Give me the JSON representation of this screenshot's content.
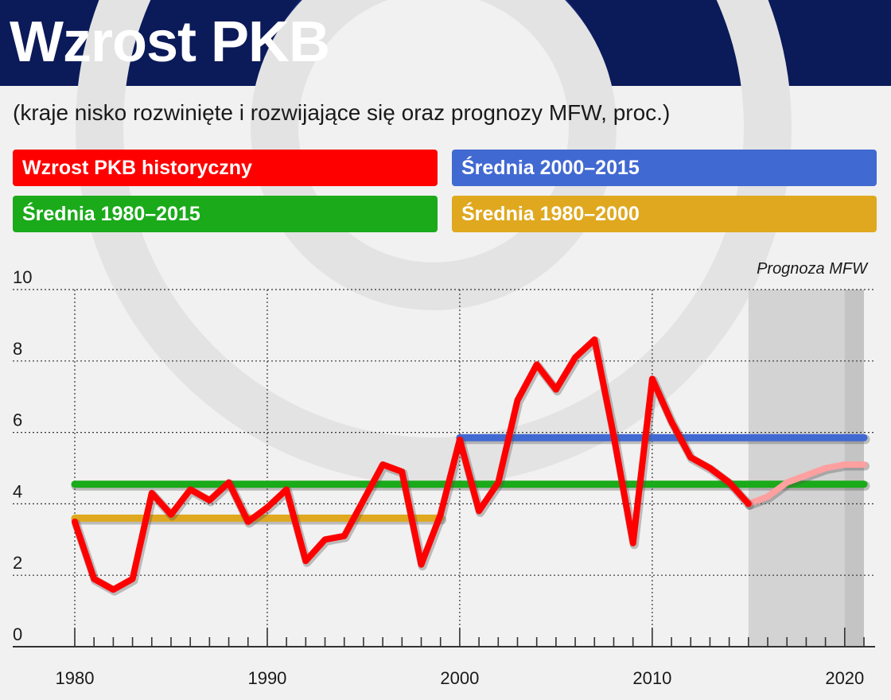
{
  "title": "Wzrost PKB",
  "subtitle": "(kraje nisko rozwinięte i rozwijające się oraz prognozy MFW, proc.)",
  "legend": [
    {
      "label": "Wzrost PKB historyczny",
      "color": "#ff0000"
    },
    {
      "label": "Średnia 2000–2015",
      "color": "#4169d2"
    },
    {
      "label": "Średnia 1980–2015",
      "color": "#1aaa1a"
    },
    {
      "label": "Średnia 1980–2000",
      "color": "#dfa81f"
    }
  ],
  "forecast_label": "Prognoza MFW",
  "chart_data": {
    "type": "line",
    "xlim": [
      1980,
      2021
    ],
    "ylim": [
      0,
      10
    ],
    "y_ticks": [
      0,
      2,
      4,
      6,
      8,
      10
    ],
    "x_tick_labels": [
      1980,
      1990,
      2000,
      2010,
      2020
    ],
    "grid": true,
    "forecast_region": [
      2015,
      2021
    ],
    "series": [
      {
        "name": "Wzrost PKB historyczny",
        "color": "#ff0000",
        "x": [
          1980,
          1981,
          1982,
          1983,
          1984,
          1985,
          1986,
          1987,
          1988,
          1989,
          1990,
          1991,
          1992,
          1993,
          1994,
          1995,
          1996,
          1997,
          1998,
          1999,
          2000,
          2001,
          2002,
          2003,
          2004,
          2005,
          2006,
          2007,
          2008,
          2009,
          2010,
          2011,
          2012,
          2013,
          2014,
          2015
        ],
        "y": [
          3.5,
          1.9,
          1.6,
          1.9,
          4.3,
          3.7,
          4.4,
          4.1,
          4.6,
          3.5,
          3.9,
          4.4,
          2.4,
          3.0,
          3.1,
          4.1,
          5.1,
          4.9,
          2.3,
          3.7,
          5.8,
          3.8,
          4.6,
          6.9,
          7.9,
          7.2,
          8.1,
          8.6,
          5.9,
          2.9,
          7.5,
          6.3,
          5.3,
          5.0,
          4.6,
          4.0
        ]
      },
      {
        "name": "Prognoza MFW",
        "color": "#ffa0a0",
        "x": [
          2015,
          2016,
          2017,
          2018,
          2019,
          2020,
          2021
        ],
        "y": [
          4.0,
          4.2,
          4.6,
          4.8,
          5.0,
          5.1,
          5.1
        ]
      },
      {
        "name": "Średnia 2000–2015",
        "color": "#4169d2",
        "x": [
          2000,
          2021
        ],
        "y": [
          5.85,
          5.85
        ]
      },
      {
        "name": "Średnia 1980–2015",
        "color": "#1aaa1a",
        "x": [
          1980,
          2021
        ],
        "y": [
          4.55,
          4.55
        ]
      },
      {
        "name": "Średnia 1980–2000",
        "color": "#dfa81f",
        "x": [
          1980,
          1999
        ],
        "y": [
          3.6,
          3.6
        ]
      }
    ]
  }
}
